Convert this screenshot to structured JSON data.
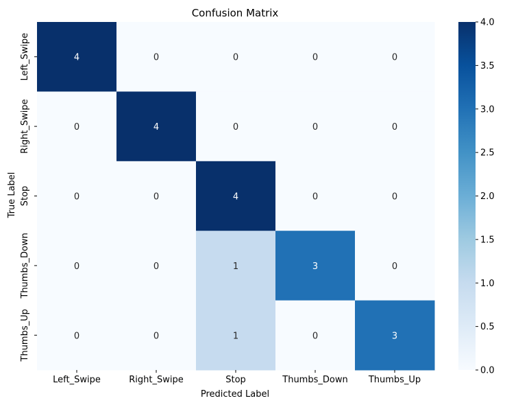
{
  "chart_data": {
    "type": "heatmap",
    "title": "Confusion Matrix",
    "xlabel": "Predicted Label",
    "ylabel": "True Label",
    "x_categories": [
      "Left_Swipe",
      "Right_Swipe",
      "Stop",
      "Thumbs_Down",
      "Thumbs_Up"
    ],
    "y_categories": [
      "Left_Swipe",
      "Right_Swipe",
      "Stop",
      "Thumbs_Down",
      "Thumbs_Up"
    ],
    "values": [
      [
        4,
        0,
        0,
        0,
        0
      ],
      [
        0,
        4,
        0,
        0,
        0
      ],
      [
        0,
        0,
        4,
        0,
        0
      ],
      [
        0,
        0,
        1,
        3,
        0
      ],
      [
        0,
        0,
        1,
        0,
        3
      ]
    ],
    "colormap": "Blues",
    "vmin": 0,
    "vmax": 4,
    "colorbar_ticks": [
      "0.0",
      "0.5",
      "1.0",
      "1.5",
      "2.0",
      "2.5",
      "3.0",
      "3.5",
      "4.0"
    ],
    "colors": {
      "low": "#f7fbff",
      "high": "#08306b"
    }
  }
}
